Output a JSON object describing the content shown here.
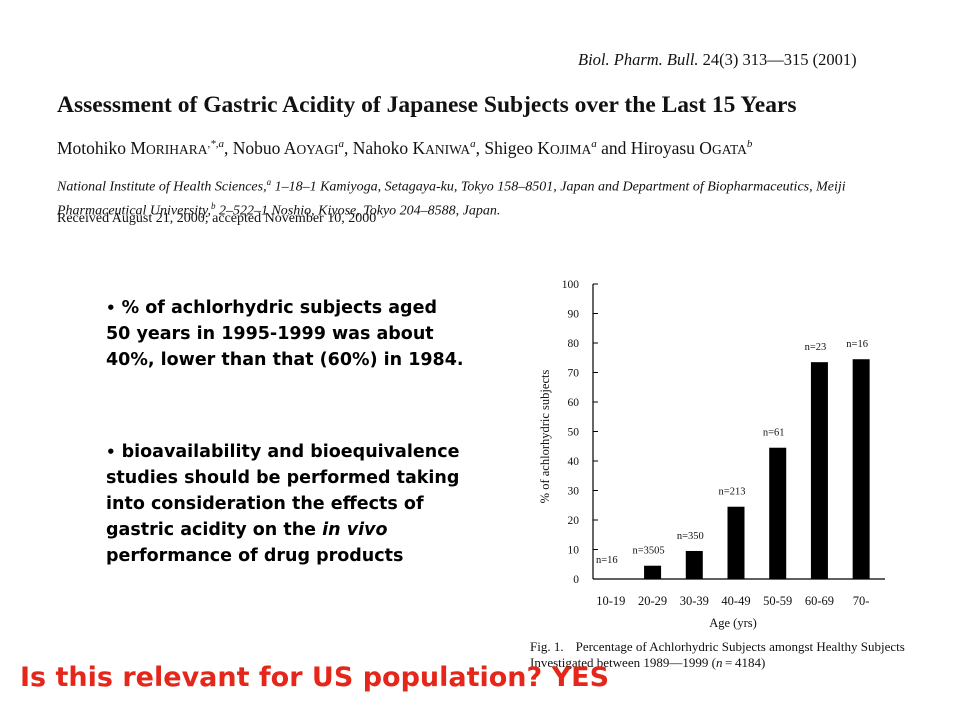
{
  "header": {
    "journal_ref": "Biol. Pharm. Bull.",
    "journal_vol": "24(3)",
    "journal_pages": "313—315 (2001)",
    "title": "Assessment of Gastric Acidity of Japanese Subjects over the Last 15 Years",
    "authors": [
      {
        "pre": "Motohiko M",
        "caps": "ORIHARA",
        "sup": ",*,a"
      },
      {
        "pre": "Nobuo A",
        "caps": "OYAGI",
        "sup": "a"
      },
      {
        "pre": "Nahoko K",
        "caps": "ANIWA",
        "sup": "a"
      },
      {
        "pre": "Shigeo K",
        "caps": "OJIMA",
        "sup": "a"
      },
      {
        "pre": "Hiroyasu O",
        "caps": "GATA",
        "sup": "b"
      }
    ],
    "authors_and": "and",
    "affiliation_1": "National Institute of Health Sciences,",
    "affiliation_1_sup": "a",
    "affiliation_1_rest": " 1–18–1 Kamiyoga, Setagaya-ku, Tokyo 158–8501, Japan and Department of Biopharmaceutics, Meiji Pharmaceutical University,",
    "affiliation_2_sup": "b",
    "affiliation_2_rest": " 2–522–1 Noshio, Kiyose, Tokyo 204–8588, Japan.",
    "received": "Received August 21, 2000; accepted November 10, 2000"
  },
  "bullets": {
    "dot": "•",
    "b1": "% of achlorhydric subjects aged 50 years in 1995-1999 was about 40%, lower than that (60%) in 1984.",
    "b2_a": "bioavailability and bioequivalence studies should be performed taking into consideration the effects of gastric acidity on the ",
    "b2_em": "in vivo",
    "b2_b": " performance of drug products"
  },
  "question": "Is this relevant for US population? YES",
  "caption": {
    "label": "Fig.  1.",
    "text_a": "Percentage of Achlorhydric Subjects amongst Healthy Subjects Investigated between 1989—1999 (",
    "n_italic": "n",
    "text_b": " = 4184)"
  },
  "chart_data": {
    "type": "bar",
    "categories": [
      "10-19",
      "20-29",
      "30-39",
      "40-49",
      "50-59",
      "60-69",
      "70-"
    ],
    "values": [
      0,
      4.5,
      9.5,
      24.5,
      44.5,
      73.5,
      74.5
    ],
    "labels": [
      "n=16",
      "n=3505",
      "n=350",
      "n=213",
      "n=61",
      "n=23",
      "n=16"
    ],
    "ylabel": "% of achlorhydric subjects",
    "xlabel": "Age (yrs)",
    "ylim": [
      0,
      100
    ],
    "yticks": [
      0,
      10,
      20,
      30,
      40,
      50,
      60,
      70,
      80,
      90,
      100
    ],
    "bar_color": "#000000"
  }
}
